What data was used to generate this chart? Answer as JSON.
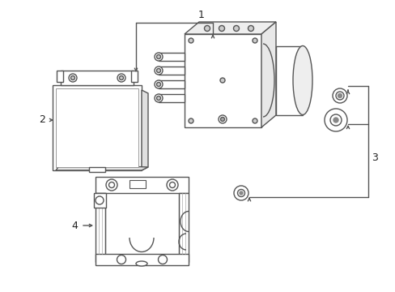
{
  "background_color": "#ffffff",
  "line_color": "#555555",
  "line_width": 1.0,
  "label_color": "#222222",
  "label_fontsize": 9,
  "fig_width": 4.89,
  "fig_height": 3.6,
  "dpi": 100
}
